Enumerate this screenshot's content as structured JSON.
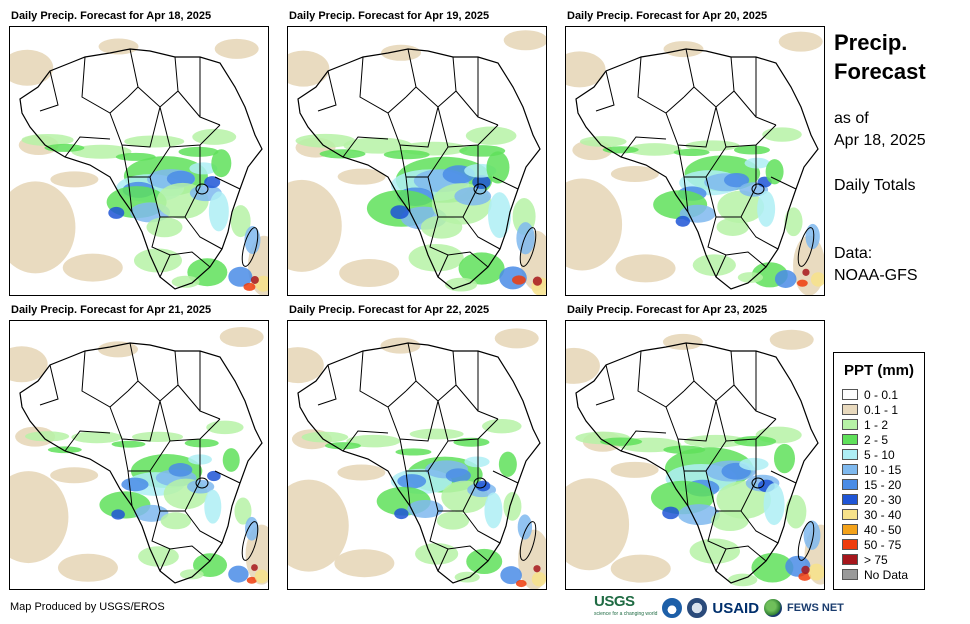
{
  "panels": [
    {
      "title": "Daily Precip. Forecast for Apr 18, 2025",
      "wet": 1.0
    },
    {
      "title": "Daily Precip. Forecast for Apr 19, 2025",
      "wet": 1.15
    },
    {
      "title": "Daily Precip. Forecast for Apr 20, 2025",
      "wet": 0.9
    },
    {
      "title": "Daily Precip. Forecast for Apr 21, 2025",
      "wet": 0.85
    },
    {
      "title": "Daily Precip. Forecast for Apr 22, 2025",
      "wet": 0.9
    },
    {
      "title": "Daily Precip. Forecast for Apr 23, 2025",
      "wet": 1.05
    }
  ],
  "sidebar": {
    "title_line1": "Precip.",
    "title_line2": "Forecast",
    "asof_line1": "as of",
    "asof_line2": "Apr 18, 2025",
    "totals": "Daily Totals",
    "data_line1": "Data:",
    "data_line2": "NOAA-GFS"
  },
  "legend": {
    "title": "PPT (mm)",
    "items": [
      {
        "label": "0 - 0.1",
        "color": "#ffffff"
      },
      {
        "label": "0.1 - 1",
        "color": "#e8d9bd"
      },
      {
        "label": "1 - 2",
        "color": "#b6f2a6"
      },
      {
        "label": "2 - 5",
        "color": "#5fe05a"
      },
      {
        "label": "5 - 10",
        "color": "#aeeef5"
      },
      {
        "label": "10 - 15",
        "color": "#7fb9ee"
      },
      {
        "label": "15 - 20",
        "color": "#4a8ce6"
      },
      {
        "label": "20 - 30",
        "color": "#1f55d6"
      },
      {
        "label": "30 - 40",
        "color": "#f7e28a"
      },
      {
        "label": "40 - 50",
        "color": "#f3a21a"
      },
      {
        "label": "50 - 75",
        "color": "#ee3c0c"
      },
      {
        "label": "> 75",
        "color": "#a6161c"
      },
      {
        "label": "No Data",
        "color": "#999999"
      }
    ]
  },
  "footer": {
    "credit": "Map Produced by USGS/EROS",
    "usgs": "USGS",
    "usgs_tagline": "science for a changing world",
    "usaid": "USAID",
    "fews": "FEWS NET"
  }
}
